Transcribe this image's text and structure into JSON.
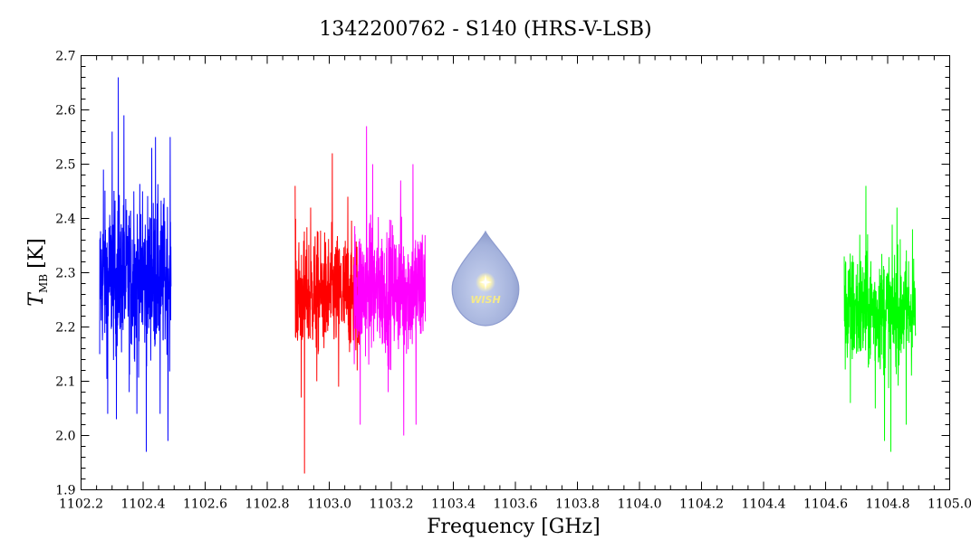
{
  "chart_data": {
    "type": "line",
    "title": "1342200762 - S140 (HRS-V-LSB)",
    "xlabel": "Frequency [GHz]",
    "ylabel_main": "T",
    "ylabel_sub": "MB",
    "ylabel_unit": "[K]",
    "xlim": [
      1102.2,
      1105.0
    ],
    "ylim": [
      1.9,
      2.7
    ],
    "x_ticks": [
      1102.2,
      1102.4,
      1102.6,
      1102.8,
      1103.0,
      1103.2,
      1103.4,
      1103.6,
      1103.8,
      1104.0,
      1104.2,
      1104.4,
      1104.6,
      1104.8,
      1105.0
    ],
    "x_tick_labels": [
      "1102.2",
      "1102.4",
      "1102.6",
      "1102.8",
      "1103.0",
      "1103.2",
      "1103.4",
      "1103.6",
      "1103.8",
      "1104.0",
      "1104.2",
      "1104.4",
      "1104.6",
      "1104.8",
      "1105.0"
    ],
    "y_ticks": [
      1.9,
      2.0,
      2.1,
      2.2,
      2.3,
      2.4,
      2.5,
      2.6,
      2.7
    ],
    "y_tick_labels": [
      "1.9",
      "2.0",
      "2.1",
      "2.2",
      "2.3",
      "2.4",
      "2.5",
      "2.6",
      "2.7"
    ],
    "grid": false,
    "series": [
      {
        "color": "#0000ff",
        "x_range": [
          1102.26,
          1102.49
        ],
        "mean": 2.29,
        "noise": 0.13,
        "points": [
          [
            1102.26,
            2.15
          ],
          [
            1102.272,
            2.49
          ],
          [
            1102.286,
            2.04
          ],
          [
            1102.3,
            2.56
          ],
          [
            1102.314,
            2.03
          ],
          [
            1102.32,
            2.66
          ],
          [
            1102.338,
            2.59
          ],
          [
            1102.355,
            2.08
          ],
          [
            1102.37,
            2.45
          ],
          [
            1102.38,
            2.04
          ],
          [
            1102.398,
            2.45
          ],
          [
            1102.41,
            1.97
          ],
          [
            1102.428,
            2.53
          ],
          [
            1102.44,
            2.55
          ],
          [
            1102.455,
            2.04
          ],
          [
            1102.47,
            2.33
          ],
          [
            1102.48,
            1.99
          ],
          [
            1102.487,
            2.55
          ]
        ]
      },
      {
        "color": "#ff0000",
        "x_range": [
          1102.89,
          1103.1
        ],
        "mean": 2.26,
        "noise": 0.1,
        "points": [
          [
            1102.89,
            2.46
          ],
          [
            1102.91,
            2.07
          ],
          [
            1102.92,
            1.93
          ],
          [
            1102.94,
            2.42
          ],
          [
            1102.96,
            2.1
          ],
          [
            1103.01,
            2.52
          ],
          [
            1103.03,
            2.09
          ],
          [
            1103.06,
            2.44
          ],
          [
            1103.09,
            2.12
          ]
        ]
      },
      {
        "color": "#ff00ff",
        "x_range": [
          1103.08,
          1103.31
        ],
        "mean": 2.27,
        "noise": 0.11,
        "points": [
          [
            1103.1,
            2.02
          ],
          [
            1103.12,
            2.57
          ],
          [
            1103.14,
            2.5
          ],
          [
            1103.19,
            2.08
          ],
          [
            1103.23,
            2.47
          ],
          [
            1103.24,
            2.0
          ],
          [
            1103.27,
            2.5
          ],
          [
            1103.28,
            2.02
          ],
          [
            1103.3,
            2.37
          ]
        ]
      },
      {
        "color": "#00ff00",
        "x_range": [
          1104.66,
          1104.89
        ],
        "mean": 2.23,
        "noise": 0.1,
        "points": [
          [
            1104.66,
            2.33
          ],
          [
            1104.68,
            2.06
          ],
          [
            1104.71,
            2.37
          ],
          [
            1104.73,
            2.46
          ],
          [
            1104.76,
            2.05
          ],
          [
            1104.79,
            1.99
          ],
          [
            1104.81,
            1.97
          ],
          [
            1104.83,
            2.42
          ],
          [
            1104.86,
            2.02
          ],
          [
            1104.88,
            2.38
          ]
        ]
      }
    ]
  },
  "logo": {
    "text": "WISH"
  }
}
